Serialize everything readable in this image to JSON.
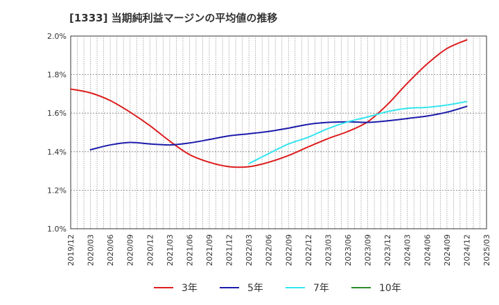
{
  "chart_data": {
    "type": "line",
    "title": "[1333]  当期純利益マージンの平均値の推移",
    "xlabel": "",
    "ylabel": "",
    "ylim": [
      1.0,
      2.0
    ],
    "y_ticks": [
      "1.0%",
      "1.2%",
      "1.4%",
      "1.6%",
      "1.8%",
      "2.0%"
    ],
    "y_tick_values": [
      1.0,
      1.2,
      1.4,
      1.6,
      1.8,
      2.0
    ],
    "x_ticks": [
      "2019/12",
      "2020/03",
      "2020/06",
      "2020/09",
      "2020/12",
      "2021/03",
      "2021/06",
      "2021/09",
      "2021/12",
      "2022/03",
      "2022/06",
      "2022/09",
      "2022/12",
      "2023/03",
      "2023/06",
      "2023/09",
      "2023/12",
      "2024/03",
      "2024/06",
      "2024/09",
      "2024/12",
      "2025/03"
    ],
    "grid": true,
    "legend_position": "bottom",
    "series": [
      {
        "name": "3年",
        "color": "#dd1c1c",
        "x": [
          "2019/12",
          "2020/03",
          "2020/06",
          "2020/09",
          "2020/12",
          "2021/03",
          "2021/06",
          "2021/09",
          "2021/12",
          "2022/03",
          "2022/06",
          "2022/09",
          "2022/12",
          "2023/03",
          "2023/06",
          "2023/09",
          "2023/12",
          "2024/03",
          "2024/06",
          "2024/09",
          "2024/12"
        ],
        "values": [
          1.725,
          1.705,
          1.665,
          1.605,
          1.535,
          1.455,
          1.385,
          1.345,
          1.322,
          1.322,
          1.345,
          1.38,
          1.425,
          1.468,
          1.505,
          1.555,
          1.645,
          1.755,
          1.855,
          1.935,
          1.98
        ]
      },
      {
        "name": "5年",
        "color": "#1a1aaa",
        "x": [
          "2020/03",
          "2020/06",
          "2020/09",
          "2020/12",
          "2021/03",
          "2021/06",
          "2021/09",
          "2021/12",
          "2022/03",
          "2022/06",
          "2022/09",
          "2022/12",
          "2023/03",
          "2023/06",
          "2023/09",
          "2023/12",
          "2024/03",
          "2024/06",
          "2024/09",
          "2024/12"
        ],
        "values": [
          1.41,
          1.435,
          1.448,
          1.44,
          1.435,
          1.445,
          1.463,
          1.482,
          1.493,
          1.505,
          1.522,
          1.542,
          1.552,
          1.555,
          1.552,
          1.56,
          1.572,
          1.585,
          1.605,
          1.635
        ]
      },
      {
        "name": "7年",
        "color": "#33e5ef",
        "x": [
          "2022/03",
          "2022/06",
          "2022/09",
          "2022/12",
          "2023/03",
          "2023/06",
          "2023/09",
          "2023/12",
          "2024/03",
          "2024/06",
          "2024/09",
          "2024/12"
        ],
        "values": [
          1.338,
          1.39,
          1.44,
          1.475,
          1.52,
          1.555,
          1.58,
          1.608,
          1.625,
          1.63,
          1.642,
          1.66
        ]
      },
      {
        "name": "10年",
        "color": "#2a8a2a",
        "x": [],
        "values": []
      }
    ]
  }
}
